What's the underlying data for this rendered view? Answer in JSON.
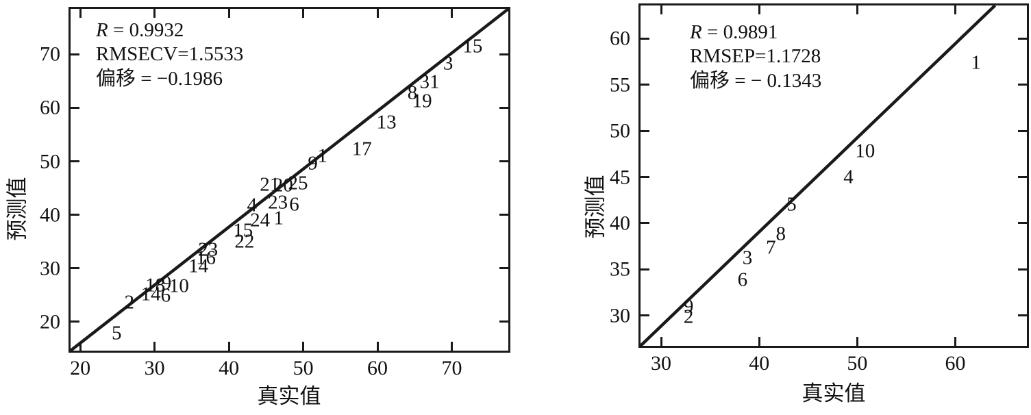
{
  "figure": {
    "background": "#ffffff",
    "ink_color": "#1a1a1a"
  },
  "chart_data": [
    {
      "type": "scatter",
      "title": "",
      "xlabel": "真实值",
      "ylabel": "预测值",
      "xlim": [
        18.7,
        77.6
      ],
      "ylim": [
        14.6,
        78.5
      ],
      "xticks": [
        20,
        30,
        40,
        50,
        60,
        70
      ],
      "yticks": [
        20,
        30,
        40,
        50,
        60,
        70
      ],
      "grid": false,
      "stats": {
        "r_line_prefix": "R",
        "r_line_rest": " = 0.9932",
        "rmse_line": "RMSECV=1.5533",
        "bias_line": "偏移 = −0.1986"
      },
      "line": {
        "x1": 18.7,
        "y1": 14.6,
        "x2": 77.6,
        "y2": 78.5
      },
      "points": [
        {
          "label": "15",
          "x": 72.8,
          "y": 71.5
        },
        {
          "label": "3",
          "x": 69.5,
          "y": 68.2
        },
        {
          "label": "31",
          "x": 67.0,
          "y": 64.8
        },
        {
          "label": "8",
          "x": 64.7,
          "y": 62.8
        },
        {
          "label": "19",
          "x": 66.0,
          "y": 61.2
        },
        {
          "label": "13",
          "x": 61.2,
          "y": 57.3
        },
        {
          "label": "17",
          "x": 57.9,
          "y": 52.3
        },
        {
          "label": "1",
          "x": 52.6,
          "y": 51.0
        },
        {
          "label": "9",
          "x": 51.3,
          "y": 49.6
        },
        {
          "label": "25",
          "x": 49.3,
          "y": 45.8
        },
        {
          "label": "20",
          "x": 47.3,
          "y": 45.4
        },
        {
          "label": "21",
          "x": 45.5,
          "y": 45.6
        },
        {
          "label": "6",
          "x": 48.8,
          "y": 41.9
        },
        {
          "label": "23",
          "x": 46.6,
          "y": 42.2
        },
        {
          "label": "4",
          "x": 43.1,
          "y": 41.8
        },
        {
          "label": "24",
          "x": 44.2,
          "y": 38.9
        },
        {
          "label": "1",
          "x": 46.7,
          "y": 39.3
        },
        {
          "label": "15",
          "x": 41.9,
          "y": 37.0
        },
        {
          "label": "22",
          "x": 42.1,
          "y": 34.9
        },
        {
          "label": "23",
          "x": 37.2,
          "y": 33.4
        },
        {
          "label": "16",
          "x": 36.9,
          "y": 31.9
        },
        {
          "label": "14",
          "x": 35.9,
          "y": 30.3
        },
        {
          "label": "18",
          "x": 30.1,
          "y": 26.8
        },
        {
          "label": "9",
          "x": 31.6,
          "y": 27.2
        },
        {
          "label": "10",
          "x": 33.3,
          "y": 26.6
        },
        {
          "label": "14",
          "x": 29.5,
          "y": 25.1
        },
        {
          "label": "6",
          "x": 31.5,
          "y": 24.8
        },
        {
          "label": "2",
          "x": 26.6,
          "y": 23.5
        },
        {
          "label": "5",
          "x": 24.9,
          "y": 17.8
        }
      ]
    },
    {
      "type": "scatter",
      "title": "",
      "xlabel": "真实值",
      "ylabel": "预测值",
      "xlim": [
        27.9,
        67.3
      ],
      "ylim": [
        26.7,
        63.6
      ],
      "xticks": [
        30,
        40,
        50,
        60
      ],
      "yticks": [
        30,
        35,
        40,
        45,
        50,
        55,
        60
      ],
      "grid": false,
      "stats": {
        "r_line_prefix": "R",
        "r_line_rest": " = 0.9891",
        "rmse_line": "RMSEP=1.1728",
        "bias_line": "偏移 = − 0.1343"
      },
      "line": {
        "x1": 27.9,
        "y1": 26.7,
        "x2": 64.05,
        "y2": 63.6
      },
      "points": [
        {
          "label": "1",
          "x": 62.1,
          "y": 57.4
        },
        {
          "label": "10",
          "x": 50.8,
          "y": 47.8
        },
        {
          "label": "4",
          "x": 49.1,
          "y": 45.0
        },
        {
          "label": "5",
          "x": 43.3,
          "y": 42.0
        },
        {
          "label": "8",
          "x": 42.2,
          "y": 38.8
        },
        {
          "label": "7",
          "x": 41.2,
          "y": 37.3
        },
        {
          "label": "3",
          "x": 38.8,
          "y": 36.2
        },
        {
          "label": "6",
          "x": 38.3,
          "y": 33.8
        },
        {
          "label": "9",
          "x": 32.8,
          "y": 30.9
        },
        {
          "label": "2",
          "x": 32.8,
          "y": 29.8
        }
      ]
    }
  ]
}
